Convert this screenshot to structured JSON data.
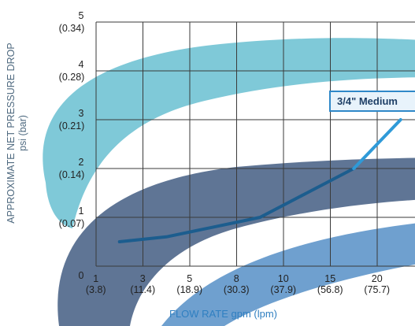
{
  "chart_data": {
    "type": "line",
    "title": "",
    "xlabel": "FLOW RATE gpm (lpm)",
    "ylabel_line1": "APPROXIMATE NET PRESSURE DROP",
    "ylabel_line2": "psi (bar)",
    "x_ticks": [
      {
        "gpm": "1",
        "lpm": "(3.8)"
      },
      {
        "gpm": "3",
        "lpm": "(11.4)"
      },
      {
        "gpm": "5",
        "lpm": "(18.9)"
      },
      {
        "gpm": "8",
        "lpm": "(30.3)"
      },
      {
        "gpm": "10",
        "lpm": "(37.9)"
      },
      {
        "gpm": "15",
        "lpm": "(56.8)"
      },
      {
        "gpm": "20",
        "lpm": "(75.7)"
      }
    ],
    "y_ticks": [
      {
        "psi": "0",
        "bar": ""
      },
      {
        "psi": "1",
        "bar": "(0.07)"
      },
      {
        "psi": "2",
        "bar": "(0.14)"
      },
      {
        "psi": "3",
        "bar": "(0.21)"
      },
      {
        "psi": "4",
        "bar": "(0.28)"
      },
      {
        "psi": "5",
        "bar": "(0.34)"
      }
    ],
    "ylim": [
      0,
      5
    ],
    "grid": true,
    "series": [
      {
        "name": "3/4\" Medium",
        "x": [
          "1",
          "3",
          "5",
          "8",
          "10",
          "15",
          "20"
        ],
        "values": [
          0.5,
          0.6,
          0.8,
          1.0,
          1.5,
          2.0,
          3.0
        ],
        "color": "#1c5d8e",
        "highlight_color": "#2f9ad8"
      }
    ],
    "band_colors": [
      "#7fc9d8",
      "#5f7595",
      "#6fa0cf"
    ]
  }
}
